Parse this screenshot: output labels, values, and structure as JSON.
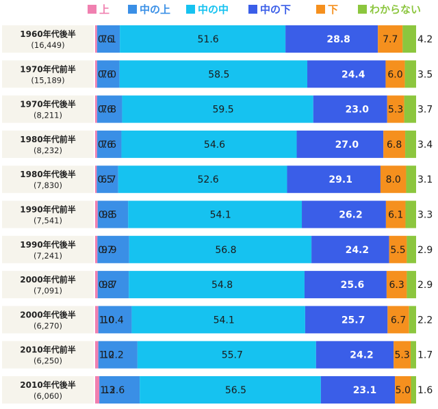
{
  "chart_data": {
    "type": "bar",
    "orientation": "horizontal",
    "stacked": true,
    "unit": "%",
    "legend_position": "top",
    "categories": [
      {
        "label": "1960年代後半",
        "n": "(16,449)"
      },
      {
        "label": "1970年代前半",
        "n": "(15,189)"
      },
      {
        "label": "1970年代後半",
        "n": "(8,211)"
      },
      {
        "label": "1980年代前半",
        "n": "(8,232)"
      },
      {
        "label": "1980年代後半",
        "n": "(7,830)"
      },
      {
        "label": "1990年代前半",
        "n": "(7,541)"
      },
      {
        "label": "1990年代後半",
        "n": "(7,241)"
      },
      {
        "label": "2000年代前半",
        "n": "(7,091)"
      },
      {
        "label": "2000年代後半",
        "n": "(6,270)"
      },
      {
        "label": "2010年代前半",
        "n": "(6,250)"
      },
      {
        "label": "2010年代後半",
        "n": "(6,060)"
      }
    ],
    "series": [
      {
        "name": "上",
        "color": "#f080b0",
        "values": [
          0.6,
          0.6,
          0.6,
          0.6,
          0.5,
          0.8,
          0.7,
          0.8,
          1.0,
          1.0,
          1.3
        ]
      },
      {
        "name": "中の上",
        "color": "#3a8fe6",
        "values": [
          7.1,
          7.0,
          7.8,
          7.6,
          6.7,
          9.5,
          9.9,
          9.7,
          10.4,
          12.2,
          12.6
        ]
      },
      {
        "name": "中の中",
        "color": "#16c2f0",
        "values": [
          51.6,
          58.5,
          59.5,
          54.6,
          52.6,
          54.1,
          56.8,
          54.8,
          54.1,
          55.7,
          56.5
        ]
      },
      {
        "name": "中の下",
        "color": "#3a5ee8",
        "values": [
          28.8,
          24.4,
          23.0,
          27.0,
          29.1,
          26.2,
          24.2,
          25.6,
          25.7,
          24.2,
          23.1
        ]
      },
      {
        "name": "下",
        "color": "#f5901e",
        "values": [
          7.7,
          6.0,
          5.3,
          6.8,
          8.0,
          6.1,
          5.5,
          6.3,
          6.7,
          5.3,
          5.0
        ]
      },
      {
        "name": "わからない",
        "color": "#8cc63e",
        "values": [
          4.2,
          3.5,
          3.7,
          3.4,
          3.1,
          3.3,
          2.9,
          2.9,
          2.2,
          1.7,
          1.6
        ]
      }
    ]
  }
}
